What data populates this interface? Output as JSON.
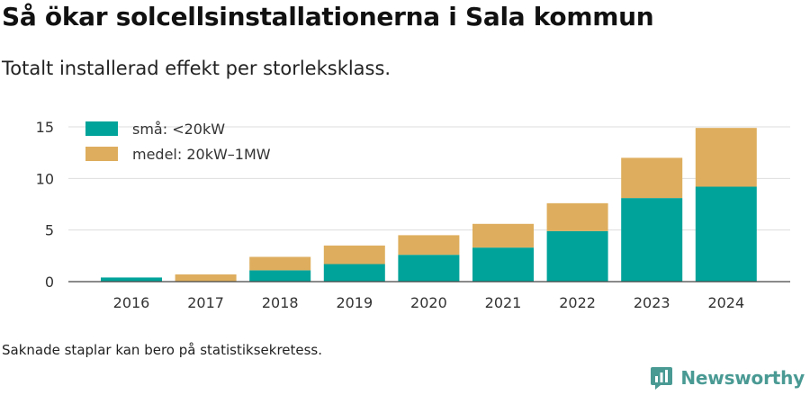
{
  "header": {
    "title": "Så ökar solcellsinstallationerna i Sala kommun",
    "subtitle": "Totalt installerad effekt per storleksklass."
  },
  "footnote": "Saknade staplar kan bero på statistiksekretess.",
  "brand": {
    "name": "Newsworthy",
    "icon": "newsworthy-logo-icon",
    "color": "#4a9a94"
  },
  "chart_data": {
    "type": "bar",
    "stacked": true,
    "categories": [
      "2016",
      "2017",
      "2018",
      "2019",
      "2020",
      "2021",
      "2022",
      "2023",
      "2024"
    ],
    "series": [
      {
        "name": "små: <20kW",
        "color": "#00a39a",
        "values": [
          0.4,
          0,
          1.1,
          1.7,
          2.6,
          3.3,
          4.9,
          8.1,
          9.2
        ]
      },
      {
        "name": "medel: 20kW–1MW",
        "color": "#deae5e",
        "values": [
          0,
          0.7,
          1.3,
          1.8,
          1.9,
          2.3,
          2.7,
          3.9,
          5.7
        ]
      }
    ],
    "ylim": [
      0,
      15
    ],
    "yticks": [
      0,
      5,
      10,
      15
    ],
    "grid": true,
    "legend_position": "top-left"
  }
}
